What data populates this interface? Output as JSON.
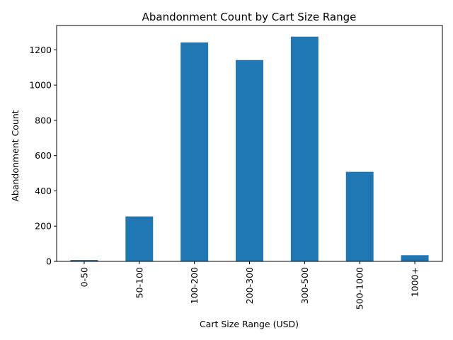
{
  "chart_data": {
    "type": "bar",
    "title": "Abandonment Count by Cart Size Range",
    "xlabel": "Cart Size Range (USD)",
    "ylabel": "Abandonment Count",
    "categories": [
      "0-50",
      "50-100",
      "100-200",
      "200-300",
      "300-500",
      "500-1000",
      "1000+"
    ],
    "values": [
      8,
      255,
      1242,
      1142,
      1275,
      508,
      35
    ],
    "ylim": [
      0,
      1338
    ],
    "yticks": [
      0,
      200,
      400,
      600,
      800,
      1000,
      1200
    ],
    "grid": false,
    "legend": "none",
    "colors": {
      "bar": "#1f77b4"
    }
  }
}
